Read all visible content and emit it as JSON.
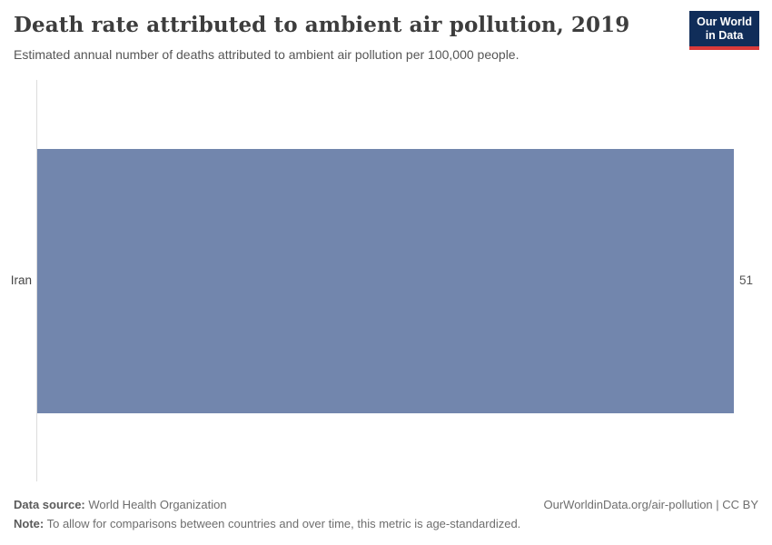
{
  "header": {
    "title": "Death rate attributed to ambient air pollution, 2019",
    "subtitle": "Estimated annual number of deaths attributed to ambient air pollution per 100,000 people."
  },
  "logo": {
    "line1": "Our World",
    "line2": "in Data",
    "background_color": "#102d59",
    "accent_color": "#d93a3a"
  },
  "chart_data": {
    "type": "bar",
    "orientation": "horizontal",
    "title": "Death rate attributed to ambient air pollution, 2019",
    "categories": [
      "Iran"
    ],
    "values": [
      51
    ],
    "value_labels": [
      "51"
    ],
    "xlim": [
      0,
      51
    ],
    "grid": false,
    "legend": "none",
    "bar_color": "#7286ad",
    "axis_color": "#dcdcdc"
  },
  "footer": {
    "datasource_label": "Data source:",
    "datasource_value": " World Health Organization",
    "note_label": "Note:",
    "note_value": " To allow for comparisons between countries and over time, this metric is age-standardized.",
    "attribution": "OurWorldinData.org/air-pollution | CC BY"
  }
}
